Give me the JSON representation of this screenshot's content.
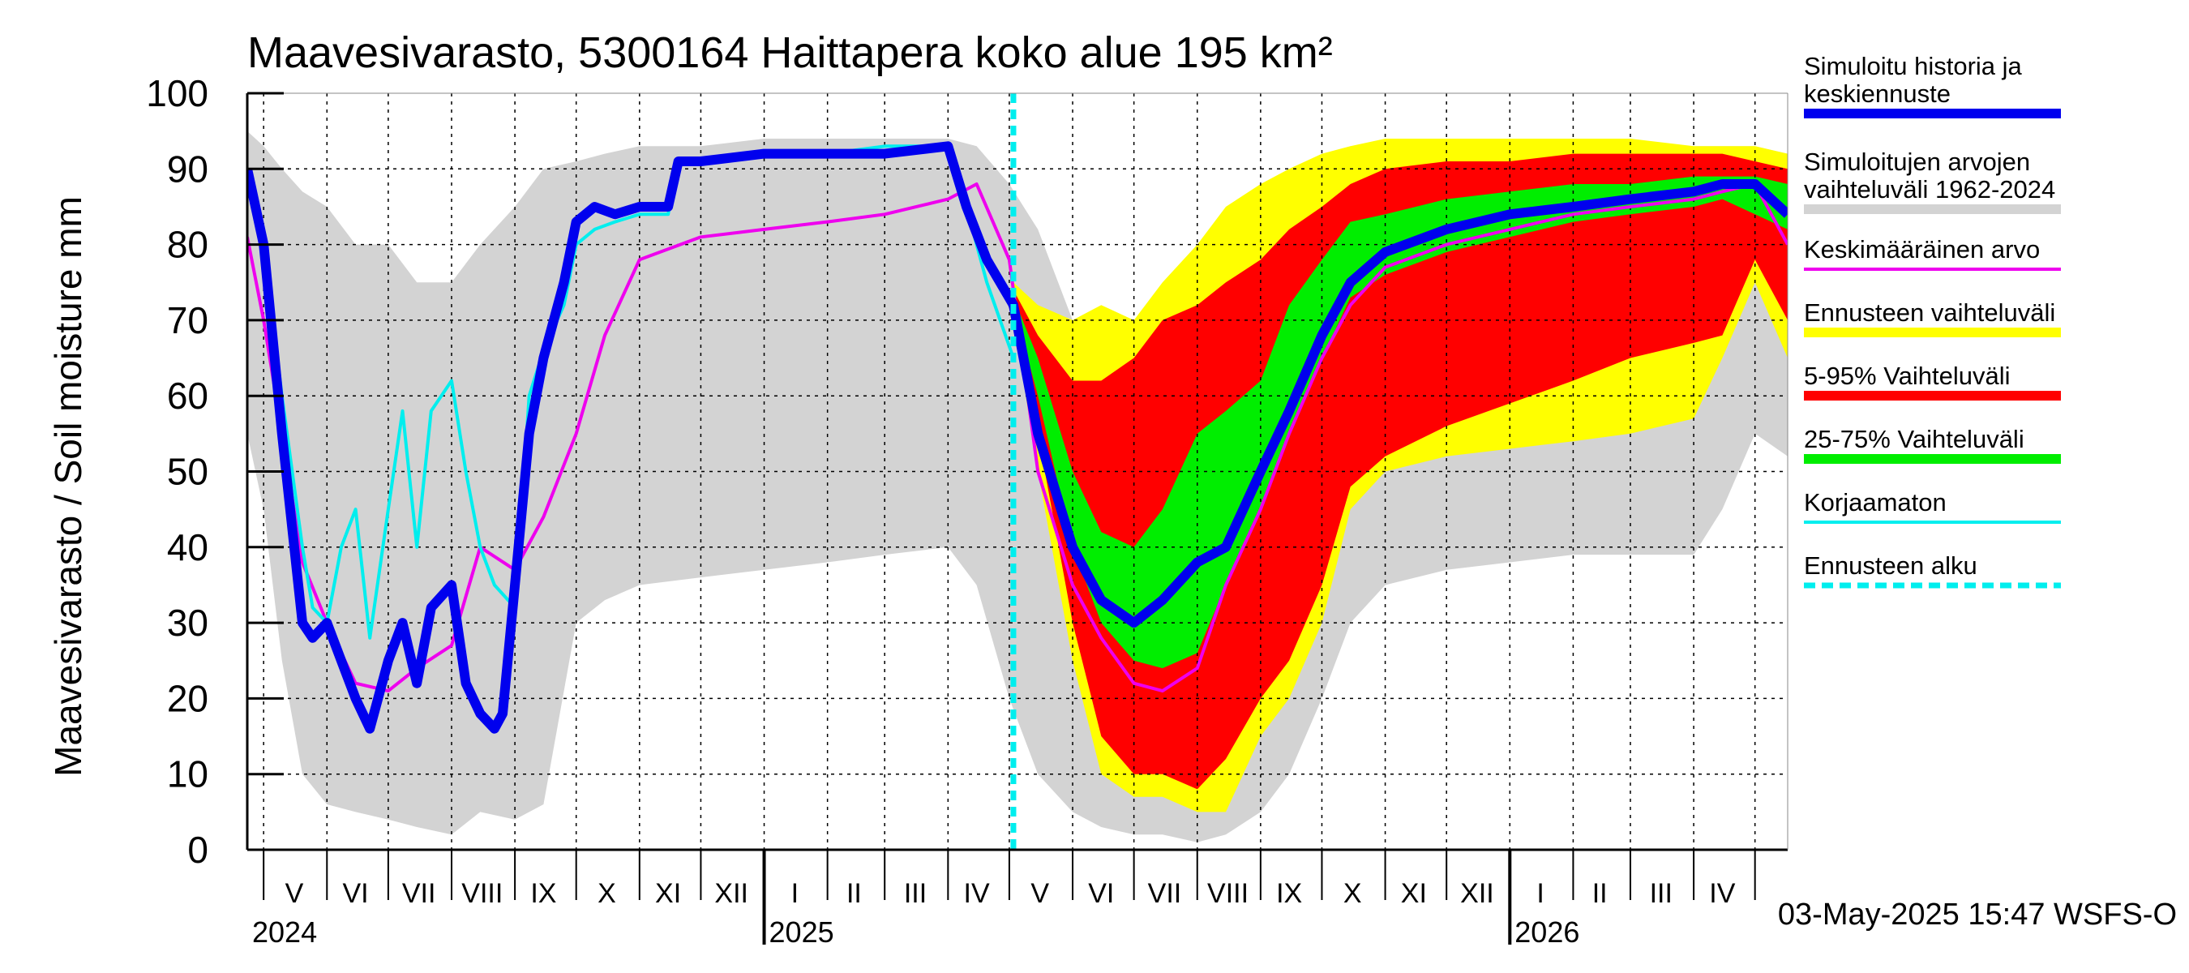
{
  "chart_data": {
    "type": "area",
    "title": "Maavesivarasto, 5300164 Haittapera koko alue 195 km²",
    "ylabel": "Maavesivarasto / Soil moisture   mm",
    "ylim": [
      0,
      100
    ],
    "yticks": [
      0,
      10,
      20,
      30,
      40,
      50,
      60,
      70,
      80,
      90,
      100
    ],
    "xlim": [
      "2024-04-23",
      "2026-05-17"
    ],
    "grid": true,
    "legend_position": "right",
    "month_labels": [
      {
        "label": "V",
        "mid": "2024-05-16"
      },
      {
        "label": "VI",
        "mid": "2024-06-15"
      },
      {
        "label": "VII",
        "mid": "2024-07-16"
      },
      {
        "label": "VIII",
        "mid": "2024-08-16"
      },
      {
        "label": "IX",
        "mid": "2024-09-15"
      },
      {
        "label": "X",
        "mid": "2024-10-16"
      },
      {
        "label": "XI",
        "mid": "2024-11-15"
      },
      {
        "label": "XII",
        "mid": "2024-12-16"
      },
      {
        "label": "I",
        "mid": "2025-01-16"
      },
      {
        "label": "II",
        "mid": "2025-02-14"
      },
      {
        "label": "III",
        "mid": "2025-03-16"
      },
      {
        "label": "IV",
        "mid": "2025-04-15"
      },
      {
        "label": "V",
        "mid": "2025-05-16"
      },
      {
        "label": "VI",
        "mid": "2025-06-15"
      },
      {
        "label": "VII",
        "mid": "2025-07-16"
      },
      {
        "label": "VIII",
        "mid": "2025-08-16"
      },
      {
        "label": "IX",
        "mid": "2025-09-15"
      },
      {
        "label": "X",
        "mid": "2025-10-16"
      },
      {
        "label": "XI",
        "mid": "2025-11-15"
      },
      {
        "label": "XII",
        "mid": "2025-12-16"
      },
      {
        "label": "I",
        "mid": "2026-01-16"
      },
      {
        "label": "II",
        "mid": "2026-02-14"
      },
      {
        "label": "III",
        "mid": "2026-03-16"
      },
      {
        "label": "IV",
        "mid": "2026-04-15"
      }
    ],
    "month_starts": [
      "2024-05-01",
      "2024-06-01",
      "2024-07-01",
      "2024-08-01",
      "2024-09-01",
      "2024-10-01",
      "2024-11-01",
      "2024-12-01",
      "2025-01-01",
      "2025-02-01",
      "2025-03-01",
      "2025-04-01",
      "2025-05-01",
      "2025-06-01",
      "2025-07-01",
      "2025-08-01",
      "2025-09-01",
      "2025-10-01",
      "2025-11-01",
      "2025-12-01",
      "2026-01-01",
      "2026-02-01",
      "2026-03-01",
      "2026-04-01",
      "2026-05-01"
    ],
    "year_labels": [
      {
        "label": "2024",
        "date": "2024-04-23"
      },
      {
        "label": "2025",
        "date": "2025-01-01"
      },
      {
        "label": "2026",
        "date": "2026-01-01"
      }
    ],
    "forecast_start": "2025-05-03",
    "footer": "03-May-2025 15:47 WSFS-O",
    "colors": {
      "history": "#0000ee",
      "range_all": "#d3d3d3",
      "mean": "#ee00ee",
      "forecast_range": "#ffff00",
      "p5_95": "#ff0000",
      "p25_75": "#00ee00",
      "uncorrected": "#00eeee",
      "forecast_start": "#00eeee"
    },
    "legend": [
      {
        "label": "Simuloitu historia ja keskiennuste",
        "color": "#0000ee",
        "style": "thick"
      },
      {
        "label": "Simuloitujen arvojen vaihteluväli 1962-2024",
        "color": "#d3d3d3",
        "style": "thick"
      },
      {
        "label": "Keskimääräinen arvo",
        "color": "#ee00ee",
        "style": "thin"
      },
      {
        "label": "Ennusteen vaihteluväli",
        "color": "#ffff00",
        "style": "thick"
      },
      {
        "label": "5-95% Vaihteluväli",
        "color": "#ff0000",
        "style": "thick"
      },
      {
        "label": "25-75% Vaihteluväli",
        "color": "#00ee00",
        "style": "thick"
      },
      {
        "label": "Korjaamaton",
        "color": "#00eeee",
        "style": "thin"
      },
      {
        "label": "Ennusteen alku",
        "color": "#00eeee",
        "style": "dashed"
      }
    ],
    "series": [
      {
        "name": "Simuloitujen arvojen vaihteluväli 1962-2024",
        "kind": "band",
        "x": [
          "2024-04-23",
          "2024-05-01",
          "2024-05-10",
          "2024-05-20",
          "2024-06-01",
          "2024-06-15",
          "2024-07-01",
          "2024-07-15",
          "2024-08-01",
          "2024-08-15",
          "2024-09-01",
          "2024-09-15",
          "2024-10-01",
          "2024-10-15",
          "2024-11-01",
          "2024-12-01",
          "2025-01-01",
          "2025-02-01",
          "2025-03-01",
          "2025-04-01",
          "2025-04-15",
          "2025-05-01",
          "2025-05-15",
          "2025-06-01",
          "2025-06-15",
          "2025-07-01",
          "2025-07-15",
          "2025-08-01",
          "2025-08-15",
          "2025-09-01",
          "2025-09-15",
          "2025-10-01",
          "2025-10-15",
          "2025-11-01",
          "2025-12-01",
          "2026-01-01",
          "2026-02-01",
          "2026-03-01",
          "2026-04-01",
          "2026-04-15",
          "2026-05-01",
          "2026-05-17"
        ],
        "low": [
          55,
          45,
          25,
          10,
          6,
          5,
          4,
          3,
          2,
          5,
          4,
          6,
          30,
          33,
          35,
          36,
          37,
          38,
          39,
          40,
          35,
          20,
          10,
          5,
          3,
          2,
          2,
          1,
          2,
          5,
          10,
          20,
          30,
          35,
          37,
          38,
          39,
          39,
          39,
          45,
          55,
          52
        ],
        "high": [
          95,
          93,
          90,
          87,
          85,
          80,
          80,
          75,
          75,
          80,
          85,
          90,
          91,
          92,
          93,
          93,
          94,
          94,
          94,
          94,
          93,
          88,
          82,
          70,
          62,
          55,
          58,
          60,
          70,
          82,
          88,
          91,
          93,
          93,
          93,
          93,
          93,
          93,
          93,
          93,
          93,
          92
        ]
      },
      {
        "name": "Ennusteen vaihteluväli",
        "kind": "band",
        "x": [
          "2025-05-03",
          "2025-05-15",
          "2025-06-01",
          "2025-06-15",
          "2025-07-01",
          "2025-07-15",
          "2025-08-01",
          "2025-08-15",
          "2025-09-01",
          "2025-09-15",
          "2025-10-01",
          "2025-10-15",
          "2025-11-01",
          "2025-12-01",
          "2026-01-01",
          "2026-02-01",
          "2026-03-01",
          "2026-04-01",
          "2026-04-15",
          "2026-05-01",
          "2026-05-17"
        ],
        "low": [
          70,
          50,
          25,
          10,
          7,
          7,
          5,
          5,
          15,
          20,
          30,
          45,
          50,
          52,
          53,
          54,
          55,
          57,
          65,
          75,
          65
        ],
        "high": [
          75,
          72,
          70,
          72,
          70,
          75,
          80,
          85,
          88,
          90,
          92,
          93,
          94,
          94,
          94,
          94,
          94,
          93,
          93,
          93,
          92
        ]
      },
      {
        "name": "5-95% Vaihteluväli",
        "kind": "band",
        "x": [
          "2025-05-03",
          "2025-05-15",
          "2025-06-01",
          "2025-06-15",
          "2025-07-01",
          "2025-07-15",
          "2025-08-01",
          "2025-08-15",
          "2025-09-01",
          "2025-09-15",
          "2025-10-01",
          "2025-10-15",
          "2025-11-01",
          "2025-12-01",
          "2026-01-01",
          "2026-02-01",
          "2026-03-01",
          "2026-04-01",
          "2026-04-15",
          "2026-05-01",
          "2026-05-17"
        ],
        "low": [
          72,
          55,
          30,
          15,
          10,
          10,
          8,
          12,
          20,
          25,
          35,
          48,
          52,
          56,
          59,
          62,
          65,
          67,
          68,
          78,
          70
        ],
        "high": [
          74,
          68,
          62,
          62,
          65,
          70,
          72,
          75,
          78,
          82,
          85,
          88,
          90,
          91,
          91,
          92,
          92,
          92,
          92,
          91,
          90
        ]
      },
      {
        "name": "25-75% Vaihteluväli",
        "kind": "band",
        "x": [
          "2025-05-03",
          "2025-05-15",
          "2025-06-01",
          "2025-06-15",
          "2025-07-01",
          "2025-07-15",
          "2025-08-01",
          "2025-08-15",
          "2025-09-01",
          "2025-09-15",
          "2025-10-01",
          "2025-10-15",
          "2025-11-01",
          "2025-12-01",
          "2026-01-01",
          "2026-02-01",
          "2026-03-01",
          "2026-04-01",
          "2026-04-15",
          "2026-05-01",
          "2026-05-17"
        ],
        "low": [
          72,
          60,
          40,
          30,
          25,
          24,
          26,
          35,
          45,
          55,
          65,
          73,
          76,
          79,
          81,
          83,
          84,
          85,
          86,
          84,
          82
        ],
        "high": [
          73,
          65,
          50,
          42,
          40,
          45,
          55,
          58,
          62,
          72,
          78,
          83,
          84,
          86,
          87,
          88,
          88,
          89,
          89,
          89,
          88
        ]
      },
      {
        "name": "Keskimääräinen arvo",
        "kind": "line",
        "x": [
          "2024-04-23",
          "2024-05-01",
          "2024-05-10",
          "2024-05-20",
          "2024-06-01",
          "2024-06-15",
          "2024-07-01",
          "2024-07-15",
          "2024-08-01",
          "2024-08-15",
          "2024-09-01",
          "2024-09-15",
          "2024-10-01",
          "2024-10-15",
          "2024-11-01",
          "2024-12-01",
          "2025-01-01",
          "2025-02-01",
          "2025-03-01",
          "2025-04-01",
          "2025-04-15",
          "2025-05-01",
          "2025-05-15",
          "2025-06-01",
          "2025-06-15",
          "2025-07-01",
          "2025-07-15",
          "2025-08-01",
          "2025-08-15",
          "2025-09-01",
          "2025-09-15",
          "2025-10-01",
          "2025-10-15",
          "2025-11-01",
          "2025-12-01",
          "2026-01-01",
          "2026-02-01",
          "2026-03-01",
          "2026-04-01",
          "2026-04-15",
          "2026-05-01",
          "2026-05-17"
        ],
        "y": [
          81,
          70,
          55,
          38,
          30,
          22,
          21,
          24,
          27,
          40,
          37,
          44,
          55,
          68,
          78,
          81,
          82,
          83,
          84,
          86,
          88,
          78,
          50,
          35,
          28,
          22,
          21,
          24,
          35,
          45,
          55,
          65,
          72,
          77,
          80,
          82,
          84,
          85,
          86,
          87,
          88,
          80
        ]
      },
      {
        "name": "Korjaamaton",
        "kind": "line",
        "x": [
          "2024-04-23",
          "2024-05-01",
          "2024-05-10",
          "2024-05-20",
          "2024-05-25",
          "2024-06-01",
          "2024-06-08",
          "2024-06-15",
          "2024-06-22",
          "2024-07-01",
          "2024-07-08",
          "2024-07-15",
          "2024-07-22",
          "2024-08-01",
          "2024-08-08",
          "2024-08-15",
          "2024-08-22",
          "2024-09-01",
          "2024-09-08",
          "2024-09-15",
          "2024-09-25",
          "2024-10-01",
          "2024-10-10",
          "2024-10-20",
          "2024-11-01",
          "2024-11-15",
          "2024-11-20",
          "2024-12-01",
          "2025-01-01",
          "2025-02-01",
          "2025-03-01",
          "2025-04-01",
          "2025-04-10",
          "2025-04-20",
          "2025-05-03"
        ],
        "y": [
          90,
          80,
          60,
          40,
          32,
          30,
          40,
          45,
          28,
          45,
          58,
          40,
          58,
          62,
          50,
          40,
          35,
          32,
          60,
          66,
          72,
          80,
          82,
          83,
          84,
          84,
          91,
          91,
          92,
          92,
          93,
          93,
          85,
          75,
          65
        ]
      },
      {
        "name": "Simuloitu historia ja keskiennuste",
        "kind": "line",
        "x": [
          "2024-04-23",
          "2024-05-01",
          "2024-05-10",
          "2024-05-20",
          "2024-05-25",
          "2024-06-01",
          "2024-06-08",
          "2024-06-15",
          "2024-06-22",
          "2024-07-01",
          "2024-07-08",
          "2024-07-15",
          "2024-07-22",
          "2024-08-01",
          "2024-08-08",
          "2024-08-15",
          "2024-08-22",
          "2024-08-26",
          "2024-09-01",
          "2024-09-08",
          "2024-09-15",
          "2024-09-25",
          "2024-10-01",
          "2024-10-10",
          "2024-10-20",
          "2024-11-01",
          "2024-11-15",
          "2024-11-20",
          "2024-12-01",
          "2025-01-01",
          "2025-02-01",
          "2025-03-01",
          "2025-04-01",
          "2025-04-10",
          "2025-04-20",
          "2025-05-03",
          "2025-05-15",
          "2025-06-01",
          "2025-06-15",
          "2025-07-01",
          "2025-07-15",
          "2025-08-01",
          "2025-08-15",
          "2025-09-01",
          "2025-09-15",
          "2025-10-01",
          "2025-10-15",
          "2025-11-01",
          "2025-12-01",
          "2026-01-01",
          "2026-02-01",
          "2026-03-01",
          "2026-04-01",
          "2026-04-15",
          "2026-05-01",
          "2026-05-17"
        ],
        "y": [
          90,
          80,
          55,
          30,
          28,
          30,
          25,
          20,
          16,
          25,
          30,
          22,
          32,
          35,
          22,
          18,
          16,
          18,
          35,
          55,
          65,
          75,
          83,
          85,
          84,
          85,
          85,
          91,
          91,
          92,
          92,
          92,
          93,
          85,
          78,
          72,
          55,
          40,
          33,
          30,
          33,
          38,
          40,
          50,
          58,
          68,
          75,
          79,
          82,
          84,
          85,
          86,
          87,
          88,
          88,
          84
        ]
      }
    ]
  }
}
